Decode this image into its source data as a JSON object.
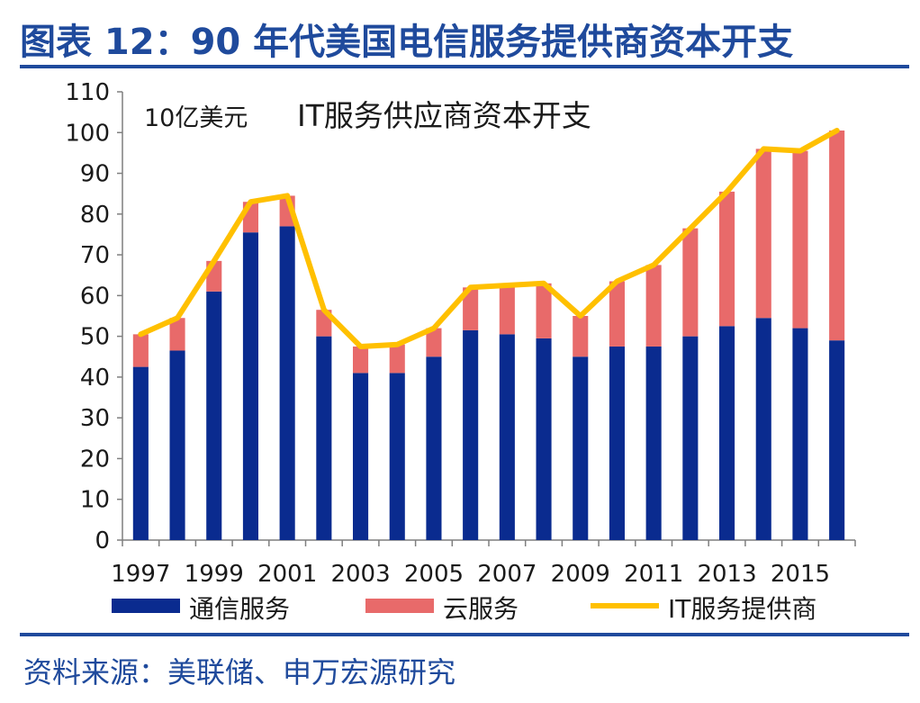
{
  "header": {
    "title": "图表 12：90 年代美国电信服务提供商资本开支"
  },
  "footer": {
    "source": "资料来源：美联储、申万宏源研究"
  },
  "colors": {
    "telecom": "#0a2b8f",
    "cloud": "#e86a6a",
    "it_line": "#ffc000",
    "title": "#1f4a9c"
  },
  "chart_data": {
    "type": "bar",
    "stacked": true,
    "unit_label": "10亿美元",
    "inner_title": "IT服务供应商资本开支",
    "x": [
      1997,
      1998,
      1999,
      2000,
      2001,
      2002,
      2003,
      2004,
      2005,
      2006,
      2007,
      2008,
      2009,
      2010,
      2011,
      2012,
      2013,
      2014,
      2015,
      2016
    ],
    "x_tick_labels": [
      "1997",
      "1999",
      "2001",
      "2003",
      "2005",
      "2007",
      "2009",
      "2011",
      "2013",
      "2015"
    ],
    "ylim": [
      0,
      110
    ],
    "y_ticks": [
      0,
      10,
      20,
      30,
      40,
      50,
      60,
      70,
      80,
      90,
      100,
      110
    ],
    "grid": false,
    "legend_position": "bottom",
    "series": [
      {
        "name": "通信服务",
        "type": "bar",
        "values": [
          42.5,
          46.5,
          61,
          75.5,
          77,
          50,
          41,
          41,
          45,
          51.5,
          50.5,
          49.5,
          45,
          47.5,
          47.5,
          50,
          52.5,
          54.5,
          52,
          49
        ]
      },
      {
        "name": "云服务",
        "type": "bar",
        "values": [
          8,
          8,
          7.5,
          7.5,
          7.5,
          6.5,
          6.5,
          7,
          7,
          10.5,
          12,
          13.5,
          10,
          16,
          20,
          26.5,
          33,
          41.5,
          43.5,
          51.5
        ]
      },
      {
        "name": "IT服务提供商",
        "type": "line",
        "values": [
          50.5,
          54.5,
          68.5,
          83,
          84.5,
          56.5,
          47.5,
          48,
          52,
          62,
          62.5,
          63,
          55,
          63.5,
          67.5,
          76.5,
          85.5,
          96,
          95.5,
          100.5
        ]
      }
    ]
  }
}
